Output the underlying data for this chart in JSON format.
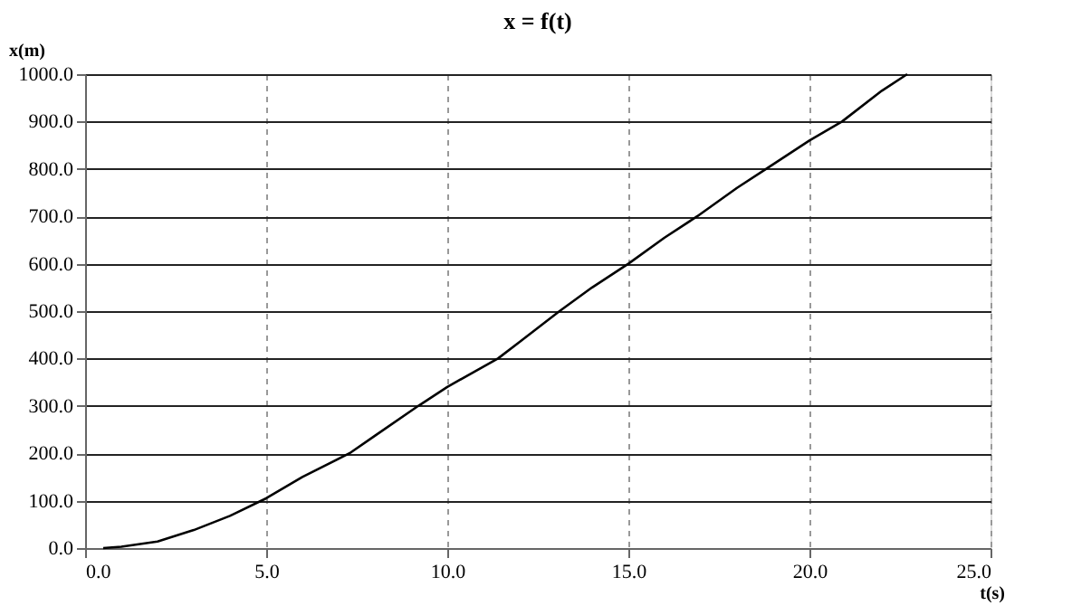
{
  "chart_data": {
    "type": "line",
    "title": "x = f(t)",
    "xlabel": "t(s)",
    "ylabel": "x(m)",
    "x": [
      0.5,
      1,
      2,
      3,
      4,
      5,
      6,
      7.3,
      8,
      9.2,
      10,
      11.4,
      12,
      13.1,
      14,
      15,
      16,
      16.9,
      18,
      18.8,
      20,
      20.9,
      22,
      22.7
    ],
    "series": [
      {
        "color": "#000000",
        "values": [
          0,
          3,
          14,
          38,
          68,
          105,
          150,
          200,
          237,
          300,
          340,
          400,
          435,
          500,
          550,
          600,
          655,
          700,
          760,
          800,
          860,
          900,
          965,
          1000
        ]
      }
    ],
    "xlim": [
      0,
      25
    ],
    "ylim": [
      0,
      1000
    ],
    "xticks": [
      {
        "value": 0,
        "label": "0.0"
      },
      {
        "value": 5,
        "label": "5.0"
      },
      {
        "value": 10,
        "label": "10.0"
      },
      {
        "value": 15,
        "label": "15.0"
      },
      {
        "value": 20,
        "label": "20.0"
      },
      {
        "value": 25,
        "label": "25.0"
      }
    ],
    "yticks": [
      {
        "value": 0,
        "label": "0.0"
      },
      {
        "value": 100,
        "label": "100.0"
      },
      {
        "value": 200,
        "label": "200.0"
      },
      {
        "value": 300,
        "label": "300.0"
      },
      {
        "value": 400,
        "label": "400.0"
      },
      {
        "value": 500,
        "label": "500.0"
      },
      {
        "value": 600,
        "label": "600.0"
      },
      {
        "value": 700,
        "label": "700.0"
      },
      {
        "value": 800,
        "label": "800.0"
      },
      {
        "value": 900,
        "label": "900.0"
      },
      {
        "value": 1000,
        "label": "1000.0"
      }
    ],
    "grid": true,
    "marker": "none",
    "line_style": "solid"
  }
}
